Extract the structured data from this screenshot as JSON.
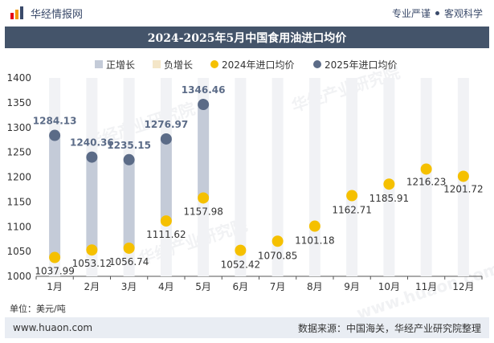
{
  "header": {
    "brand": "华经情报网",
    "slogan_left": "专业严谨",
    "slogan_right": "客观科学"
  },
  "title": "2024-2025年5月中国食用油进口均价",
  "unit_label": "单位：美元/吨",
  "footer": {
    "site": "www.huaon.com",
    "source": "数据来源：中国海关，华经产业研究院整理"
  },
  "watermarks": [
    "华经产业研究院",
    "华经产业研究院",
    "华经产业研究院",
    "www.huaon.com"
  ],
  "colors": {
    "bar": "#c4cbd8",
    "line2024": "#f5c000",
    "line2025": "#5b6b87",
    "title_bg": "#44546a"
  },
  "chart_data": {
    "type": "scatter",
    "title": "2024-2025年5月中国食用油进口均价",
    "categories": [
      "1月",
      "2月",
      "3月",
      "4月",
      "5月",
      "6月",
      "7月",
      "8月",
      "9月",
      "10月",
      "11月",
      "12月"
    ],
    "ylim": [
      1000,
      1400
    ],
    "yticks": [
      1000,
      1050,
      1100,
      1150,
      1200,
      1250,
      1300,
      1350,
      1400
    ],
    "legend": [
      {
        "name": "正增长",
        "kind": "bar"
      },
      {
        "name": "负增长",
        "kind": "bar"
      },
      {
        "name": "2024年进口均价",
        "kind": "dot"
      },
      {
        "name": "2025年进口均价",
        "kind": "dot"
      }
    ],
    "legend_position": "top",
    "series": [
      {
        "name": "2024年进口均价",
        "values": [
          1037.99,
          1053.12,
          1056.74,
          1111.62,
          1157.98,
          1052.42,
          1070.85,
          1101.18,
          1162.71,
          1185.91,
          1216.23,
          1201.72
        ]
      },
      {
        "name": "2025年进口均价",
        "values": [
          1284.13,
          1240.36,
          1235.15,
          1276.97,
          1346.46,
          null,
          null,
          null,
          null,
          null,
          null,
          null
        ]
      }
    ]
  }
}
